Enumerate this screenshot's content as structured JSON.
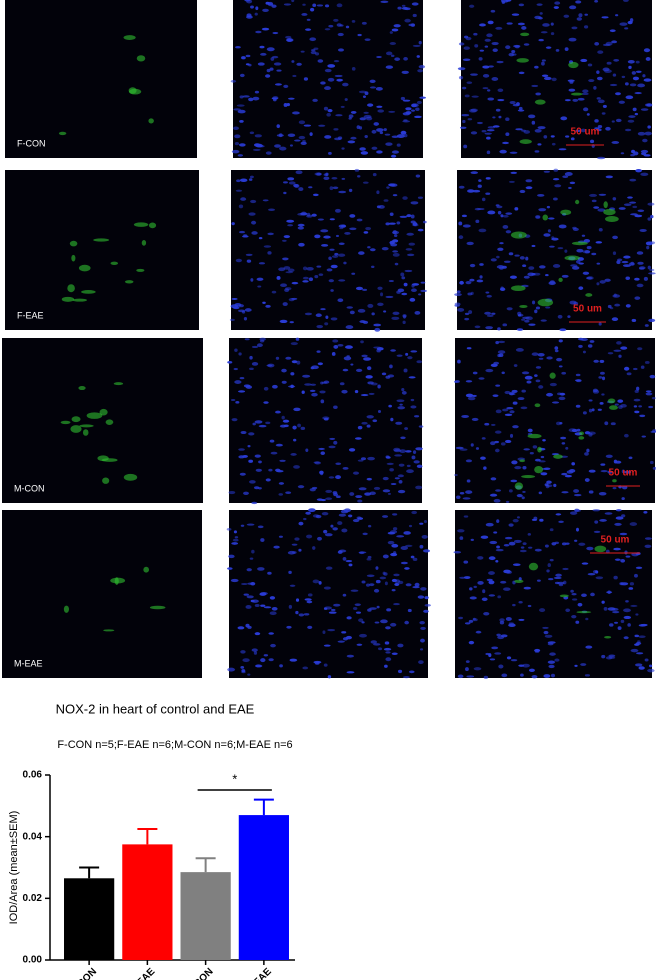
{
  "panels": {
    "labels": [
      "F-CON",
      "F-EAE",
      "M-CON",
      "M-EAE"
    ],
    "scale_labels": [
      "50 um",
      "50 um",
      "50 um",
      "50 um"
    ]
  },
  "chart_data": {
    "type": "bar",
    "title": "NOX-2 in heart of control and EAE",
    "subtitle": "F-CON n=5;F-EAE n=6;M-CON n=6;M-EAE n=6",
    "ylabel": "IOD/Area (mean±SEM)",
    "categories": [
      "F-CON",
      "F-EAE",
      "M-CON",
      "M-EAE"
    ],
    "values": [
      0.0265,
      0.0375,
      0.0285,
      0.047
    ],
    "errors": [
      0.0035,
      0.005,
      0.0045,
      0.005
    ],
    "colors": [
      "#000000",
      "#ff0000",
      "#808080",
      "#0000ff"
    ],
    "ylim": [
      0,
      0.06
    ],
    "yticks": [
      {
        "value": 0,
        "label": "0.00"
      },
      {
        "value": 0.02,
        "label": "0.02"
      },
      {
        "value": 0.04,
        "label": "0.04"
      },
      {
        "value": 0.06,
        "label": "0.06"
      }
    ],
    "annotation": "*"
  }
}
